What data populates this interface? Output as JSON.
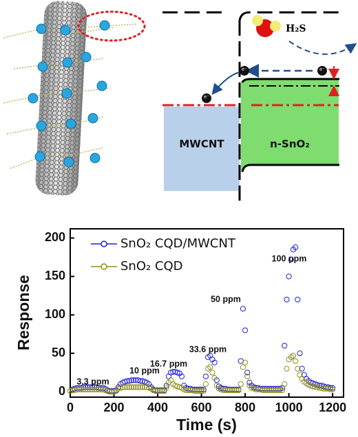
{
  "diagram": {
    "left_label": "MWCNT",
    "right_label": "n-SnO₂",
    "gas": "H₂S",
    "electron": "e⁻"
  },
  "chart_data": {
    "type": "scatter",
    "xlabel": "Time (s)",
    "ylabel": "Response",
    "xlim": [
      0,
      1250
    ],
    "ylim": [
      -7,
      212
    ],
    "xticks": [
      0,
      200,
      400,
      600,
      800,
      1000,
      1200
    ],
    "yticks": [
      0,
      50,
      100,
      150,
      200
    ],
    "legend": "upper left",
    "annotations": [
      "3.3 ppm",
      "10 ppm",
      "16.7 ppm",
      "33.6 ppm",
      "50 ppm",
      "100 ppm"
    ],
    "x": [
      0,
      10,
      20,
      30,
      40,
      50,
      60,
      70,
      80,
      90,
      100,
      110,
      120,
      130,
      140,
      150,
      160,
      170,
      180,
      190,
      200,
      210,
      220,
      230,
      240,
      250,
      260,
      270,
      280,
      290,
      300,
      310,
      320,
      330,
      340,
      350,
      360,
      370,
      380,
      390,
      400,
      410,
      420,
      430,
      440,
      450,
      460,
      470,
      480,
      490,
      500,
      510,
      520,
      530,
      540,
      550,
      560,
      570,
      580,
      590,
      600,
      610,
      620,
      630,
      640,
      650,
      660,
      670,
      680,
      690,
      700,
      710,
      720,
      730,
      740,
      750,
      760,
      770,
      780,
      790,
      800,
      810,
      820,
      830,
      840,
      850,
      860,
      870,
      880,
      890,
      900,
      910,
      920,
      930,
      940,
      950,
      960,
      970,
      980,
      990,
      1000,
      1010,
      1020,
      1030,
      1040,
      1050,
      1060,
      1070,
      1080,
      1090,
      1100,
      1110,
      1120,
      1130,
      1140,
      1150,
      1160,
      1170,
      1180,
      1190,
      1200
    ],
    "series": [
      {
        "name": "SnO₂ CQD/MWCNT",
        "color": "#1f1fd6",
        "values": [
          1,
          3,
          4,
          5,
          5,
          5,
          6,
          6,
          6,
          6,
          6,
          6,
          6,
          5,
          5,
          5,
          4,
          2,
          1,
          1,
          1,
          2,
          6,
          10,
          12,
          13,
          14,
          14,
          15,
          15,
          15,
          15,
          14,
          14,
          13,
          12,
          10,
          6,
          3,
          2,
          2,
          2,
          2,
          2,
          8,
          20,
          25,
          26,
          26,
          25,
          24,
          20,
          8,
          5,
          4,
          4,
          3,
          3,
          3,
          3,
          3,
          3,
          20,
          45,
          47,
          42,
          38,
          15,
          7,
          5,
          4,
          4,
          3,
          3,
          3,
          3,
          3,
          3,
          40,
          108,
          80,
          25,
          12,
          8,
          6,
          5,
          5,
          4,
          4,
          4,
          4,
          4,
          4,
          4,
          4,
          4,
          4,
          5,
          60,
          120,
          150,
          172,
          185,
          188,
          120,
          50,
          30,
          22,
          17,
          14,
          12,
          11,
          10,
          9,
          8,
          8,
          7,
          6,
          6,
          5,
          5
        ]
      },
      {
        "name": "SnO₂ CQD",
        "color": "#8f8f1a",
        "values": [
          1,
          2,
          2,
          3,
          3,
          3,
          3,
          3,
          3,
          3,
          3,
          3,
          3,
          3,
          3,
          3,
          2,
          1,
          0,
          0,
          0,
          1,
          4,
          5,
          6,
          6,
          6,
          6,
          6,
          6,
          6,
          6,
          6,
          6,
          6,
          6,
          5,
          4,
          2,
          1,
          1,
          1,
          1,
          1,
          5,
          12,
          15,
          10,
          8,
          7,
          6,
          5,
          3,
          2,
          2,
          2,
          2,
          1,
          1,
          1,
          1,
          1,
          10,
          30,
          32,
          25,
          18,
          8,
          4,
          3,
          2,
          2,
          2,
          2,
          2,
          2,
          2,
          2,
          10,
          32,
          38,
          20,
          8,
          5,
          4,
          3,
          3,
          3,
          2,
          2,
          2,
          2,
          2,
          2,
          2,
          2,
          2,
          2,
          10,
          30,
          42,
          45,
          47,
          40,
          30,
          22,
          17,
          13,
          11,
          9,
          8,
          7,
          6,
          6,
          5,
          5,
          4,
          4,
          4,
          3,
          3
        ]
      }
    ]
  }
}
